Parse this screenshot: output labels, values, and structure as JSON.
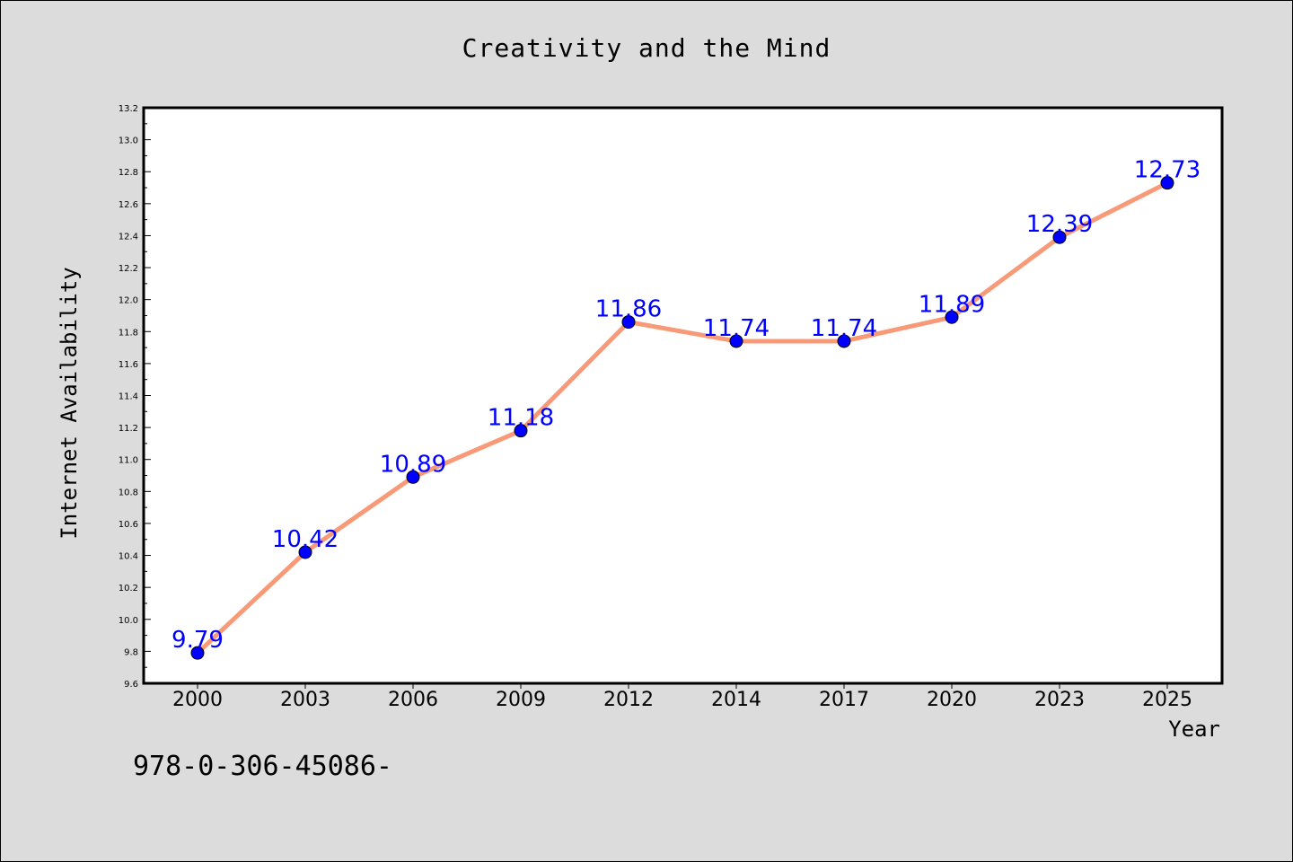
{
  "chart_data": {
    "type": "line",
    "title": "Creativity and the Mind",
    "xlabel": "Year",
    "ylabel": "Internet Availability",
    "categories": [
      "2000",
      "2003",
      "2006",
      "2009",
      "2012",
      "2014",
      "2017",
      "2020",
      "2023",
      "2025"
    ],
    "series": [
      {
        "values": [
          9.79,
          10.42,
          10.89,
          11.18,
          11.86,
          11.74,
          11.74,
          11.89,
          12.39,
          12.73
        ],
        "labels": [
          "9.79",
          "10.42",
          "10.89",
          "11.18",
          "11.86",
          "11.74",
          "11.74",
          "11.89",
          "12.39",
          "12.73"
        ],
        "line_color": "#f89a78",
        "marker_color": "#0000ff"
      }
    ],
    "ylim": [
      9.6,
      13.2
    ],
    "yticks": [
      "9.6",
      "9.8",
      "10.0",
      "10.2",
      "10.4",
      "10.6",
      "10.8",
      "11.0",
      "11.2",
      "11.4",
      "11.6",
      "11.8",
      "12.0",
      "12.2",
      "12.4",
      "12.6",
      "12.8",
      "13.0",
      "13.2"
    ],
    "grid": false,
    "legend": "none"
  },
  "footer": {
    "text": "978-0-306-45086-"
  },
  "colors": {
    "background": "#dcdcdc",
    "plot_background": "#ffffff",
    "line": "#f89a78",
    "marker": "#0000ff",
    "label": "#0000ff"
  }
}
